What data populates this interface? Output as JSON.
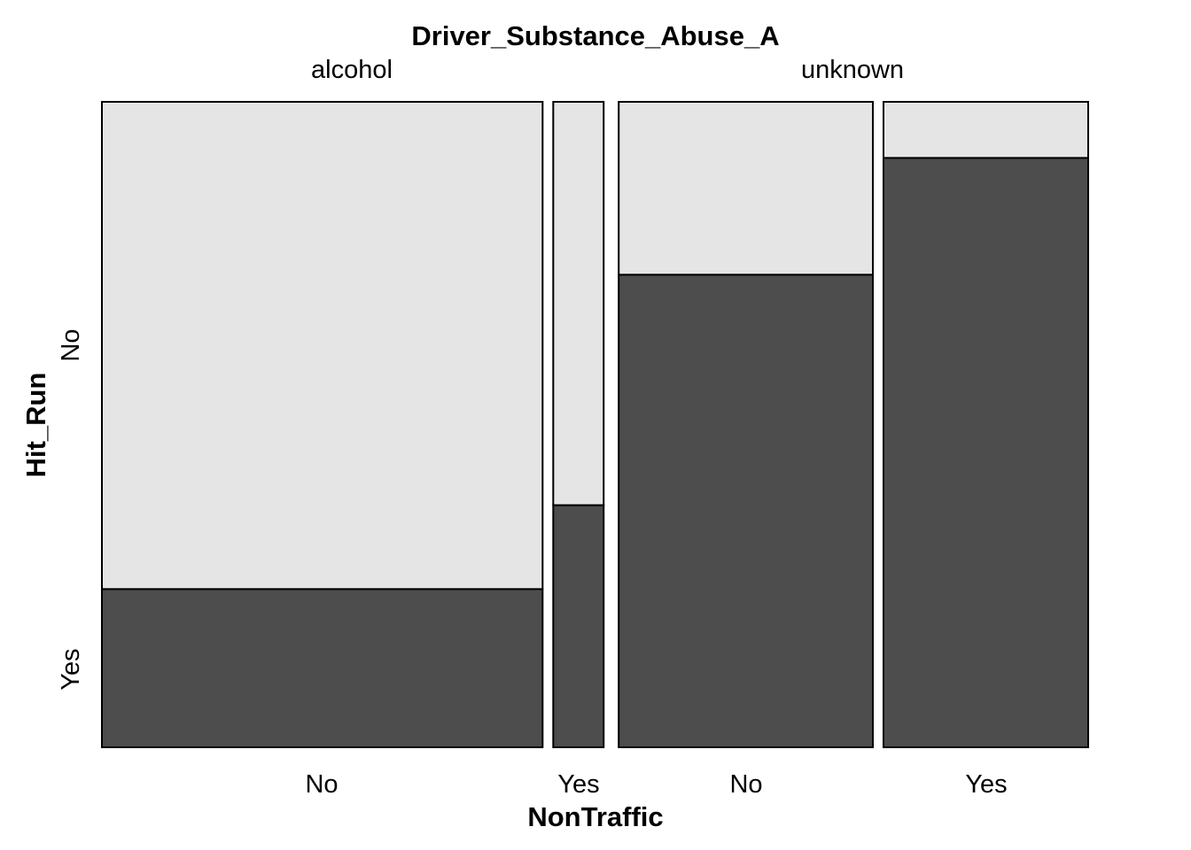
{
  "chart_data": {
    "type": "mosaic",
    "title": "Driver_Substance_Abuse_A",
    "xlabel": "NonTraffic",
    "ylabel": "Hit_Run",
    "top_variable_levels": [
      "alcohol",
      "unknown"
    ],
    "x_levels": [
      "No",
      "Yes"
    ],
    "y_levels": [
      "No",
      "Yes"
    ],
    "colors": {
      "No": "#e5e5e5",
      "Yes": "#4d4d4d",
      "border": "#000000"
    },
    "cells": [
      {
        "group": "alcohol",
        "nontraffic": "No",
        "width_share": 0.437,
        "hit_run_yes_share": 0.245
      },
      {
        "group": "alcohol",
        "nontraffic": "Yes",
        "width_share": 0.05,
        "hit_run_yes_share": 0.375
      },
      {
        "group": "unknown",
        "nontraffic": "No",
        "width_share": 0.252,
        "hit_run_yes_share": 0.732
      },
      {
        "group": "unknown",
        "nontraffic": "Yes",
        "width_share": 0.203,
        "hit_run_yes_share": 0.913
      }
    ]
  }
}
